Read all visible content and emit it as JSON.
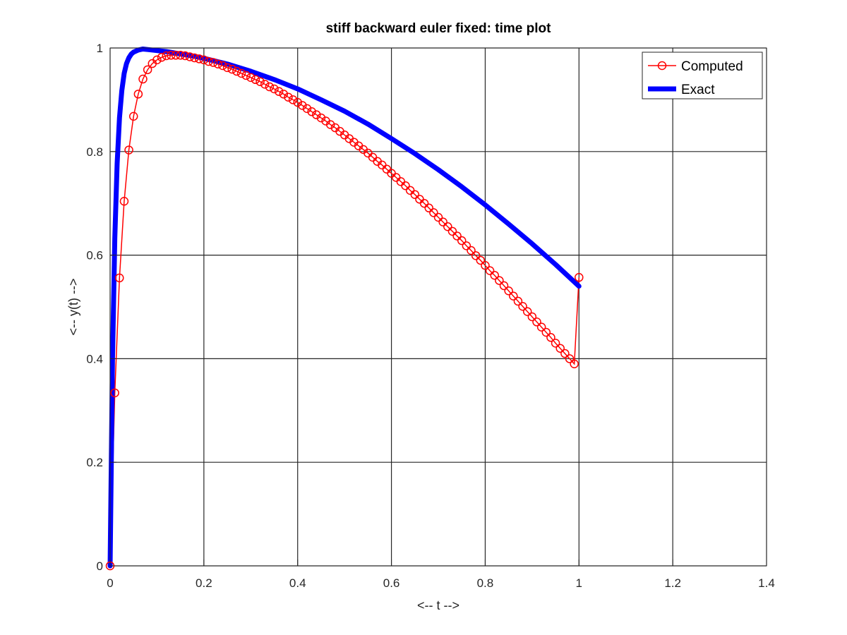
{
  "chart_data": {
    "type": "line",
    "title": "stiff backward euler fixed: time plot",
    "xlabel": "<-- t -->",
    "ylabel": "<-- y(t) -->",
    "xlim": [
      0,
      1.4
    ],
    "ylim": [
      0,
      1
    ],
    "xticks": [
      0,
      0.2,
      0.4,
      0.6,
      0.8,
      1,
      1.2,
      1.4
    ],
    "xtick_labels": [
      "0",
      "0.2",
      "0.4",
      "0.6",
      "0.8",
      "1",
      "1.2",
      "1.4"
    ],
    "yticks": [
      0,
      0.2,
      0.4,
      0.6,
      0.8,
      1
    ],
    "ytick_labels": [
      "0",
      "0.2",
      "0.4",
      "0.6",
      "0.8",
      "1"
    ],
    "grid": true,
    "legend_position": "top-right",
    "series": [
      {
        "name": "Computed",
        "color": "#ff0000",
        "marker": "circle",
        "x": [
          0,
          0.01,
          0.02,
          0.03,
          0.04,
          0.05,
          0.06,
          0.07,
          0.08,
          0.09,
          0.1,
          0.11,
          0.12,
          0.13,
          0.14,
          0.15,
          0.16,
          0.17,
          0.18,
          0.19,
          0.2,
          0.21,
          0.22,
          0.23,
          0.24,
          0.25,
          0.26,
          0.27,
          0.28,
          0.29,
          0.3,
          0.31,
          0.32,
          0.33,
          0.34,
          0.35,
          0.36,
          0.37,
          0.38,
          0.39,
          0.4,
          0.41,
          0.42,
          0.43,
          0.44,
          0.45,
          0.46,
          0.47,
          0.48,
          0.49,
          0.5,
          0.51,
          0.52,
          0.53,
          0.54,
          0.55,
          0.56,
          0.57,
          0.58,
          0.59,
          0.6,
          0.61,
          0.62,
          0.63,
          0.64,
          0.65,
          0.66,
          0.67,
          0.68,
          0.69,
          0.7,
          0.71,
          0.72,
          0.73,
          0.74,
          0.75,
          0.76,
          0.77,
          0.78,
          0.79,
          0.8,
          0.81,
          0.82,
          0.83,
          0.84,
          0.85,
          0.86,
          0.87,
          0.88,
          0.89,
          0.9,
          0.91,
          0.92,
          0.93,
          0.94,
          0.95,
          0.96,
          0.97,
          0.98,
          0.99,
          1.0
        ],
        "y": [
          0,
          0.334,
          0.556,
          0.704,
          0.803,
          0.868,
          0.911,
          0.94,
          0.958,
          0.97,
          0.977,
          0.982,
          0.985,
          0.986,
          0.986,
          0.986,
          0.985,
          0.983,
          0.981,
          0.979,
          0.977,
          0.974,
          0.972,
          0.969,
          0.966,
          0.962,
          0.959,
          0.955,
          0.951,
          0.947,
          0.943,
          0.939,
          0.935,
          0.93,
          0.925,
          0.921,
          0.916,
          0.911,
          0.905,
          0.9,
          0.895,
          0.889,
          0.883,
          0.877,
          0.871,
          0.865,
          0.859,
          0.852,
          0.846,
          0.839,
          0.832,
          0.825,
          0.818,
          0.811,
          0.804,
          0.797,
          0.789,
          0.781,
          0.774,
          0.766,
          0.758,
          0.75,
          0.742,
          0.734,
          0.725,
          0.717,
          0.708,
          0.7,
          0.691,
          0.682,
          0.673,
          0.664,
          0.655,
          0.646,
          0.637,
          0.628,
          0.618,
          0.609,
          0.599,
          0.59,
          0.58,
          0.57,
          0.561,
          0.551,
          0.541,
          0.531,
          0.521,
          0.511,
          0.501,
          0.491,
          0.481,
          0.471,
          0.461,
          0.451,
          0.441,
          0.43,
          0.42,
          0.41,
          0.4,
          0.39,
          0.557
        ]
      },
      {
        "name": "Exact",
        "color": "#0000ff",
        "x": [
          0,
          0.005,
          0.01,
          0.015,
          0.02,
          0.025,
          0.03,
          0.035,
          0.04,
          0.045,
          0.05,
          0.06,
          0.07,
          0.08,
          0.09,
          0.1,
          0.12,
          0.14,
          0.16,
          0.18,
          0.2,
          0.25,
          0.3,
          0.35,
          0.4,
          0.45,
          0.5,
          0.55,
          0.6,
          0.65,
          0.7,
          0.75,
          0.8,
          0.85,
          0.9,
          0.95,
          1.0
        ],
        "y": [
          0,
          0.394,
          0.632,
          0.777,
          0.865,
          0.918,
          0.951,
          0.97,
          0.981,
          0.988,
          0.992,
          0.996,
          0.998,
          0.997,
          0.996,
          0.995,
          0.993,
          0.99,
          0.987,
          0.984,
          0.98,
          0.969,
          0.955,
          0.939,
          0.921,
          0.9,
          0.878,
          0.853,
          0.825,
          0.796,
          0.765,
          0.732,
          0.697,
          0.66,
          0.622,
          0.582,
          0.54
        ]
      }
    ]
  }
}
